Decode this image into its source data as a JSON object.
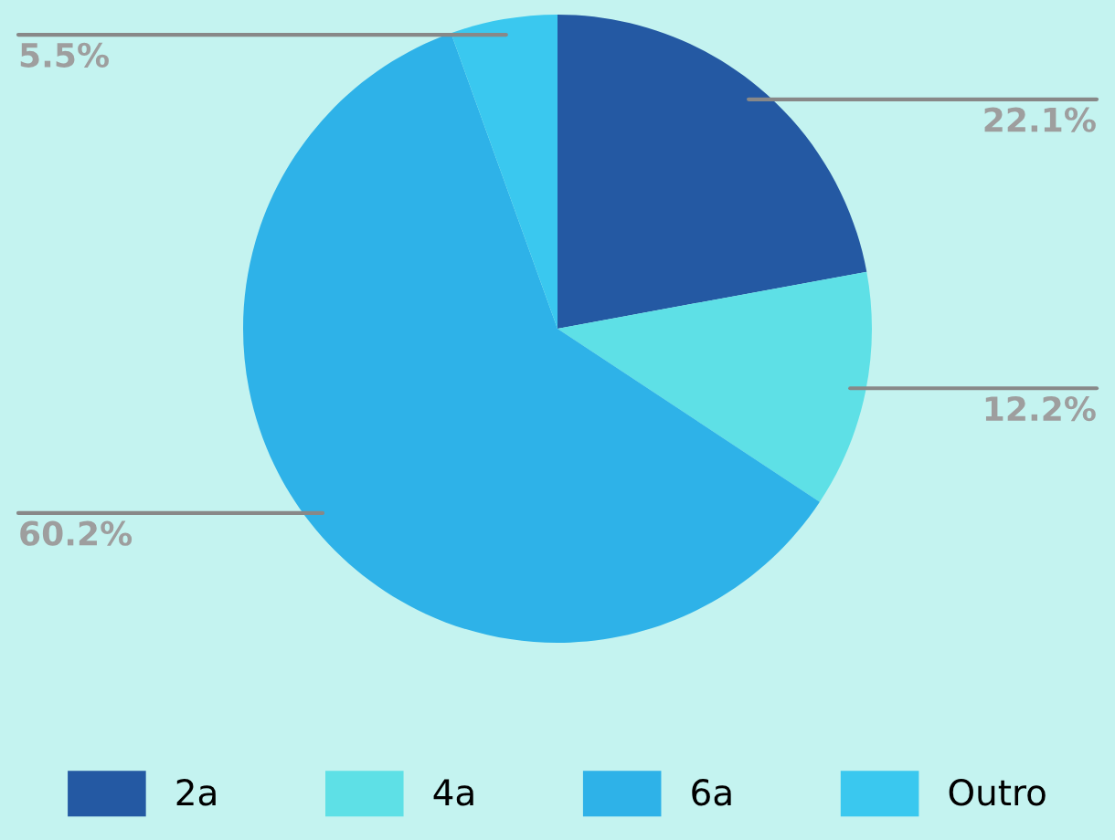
{
  "chart_data": {
    "type": "pie",
    "categories": [
      "2a",
      "4a",
      "6a",
      "Outro"
    ],
    "values": [
      22.1,
      12.2,
      60.2,
      5.5
    ],
    "colors": [
      "#2459a3",
      "#5ee0e6",
      "#2eb2e8",
      "#3ac8ef"
    ],
    "value_labels": [
      "22.1%",
      "12.2%",
      "60.2%",
      "5.5%"
    ],
    "legend": "bottom"
  }
}
